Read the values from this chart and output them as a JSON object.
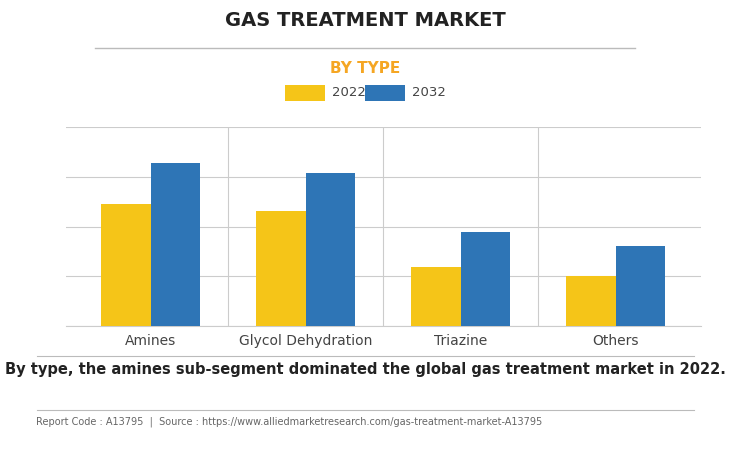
{
  "title": "GAS TREATMENT MARKET",
  "subtitle": "BY TYPE",
  "subtitle_color": "#F5A623",
  "categories": [
    "Amines",
    "Glycol Dehydration",
    "Triazine",
    "Others"
  ],
  "values_2022": [
    5.8,
    5.5,
    2.8,
    2.4
  ],
  "values_2032": [
    7.8,
    7.3,
    4.5,
    3.8
  ],
  "color_2022": "#F5C518",
  "color_2032": "#2E75B6",
  "legend_labels": [
    "2022",
    "2032"
  ],
  "bar_width": 0.32,
  "ylim": [
    0,
    9.5
  ],
  "background_color": "#FFFFFF",
  "grid_color": "#CCCCCC",
  "footer_text": "By type, the amines sub-segment dominated the global gas treatment market in 2022.",
  "report_code": "Report Code : A13795  |  Source : https://www.alliedmarketresearch.com/gas-treatment-market-A13795",
  "title_fontsize": 14,
  "subtitle_fontsize": 11,
  "footer_fontsize": 10.5,
  "tick_fontsize": 10
}
